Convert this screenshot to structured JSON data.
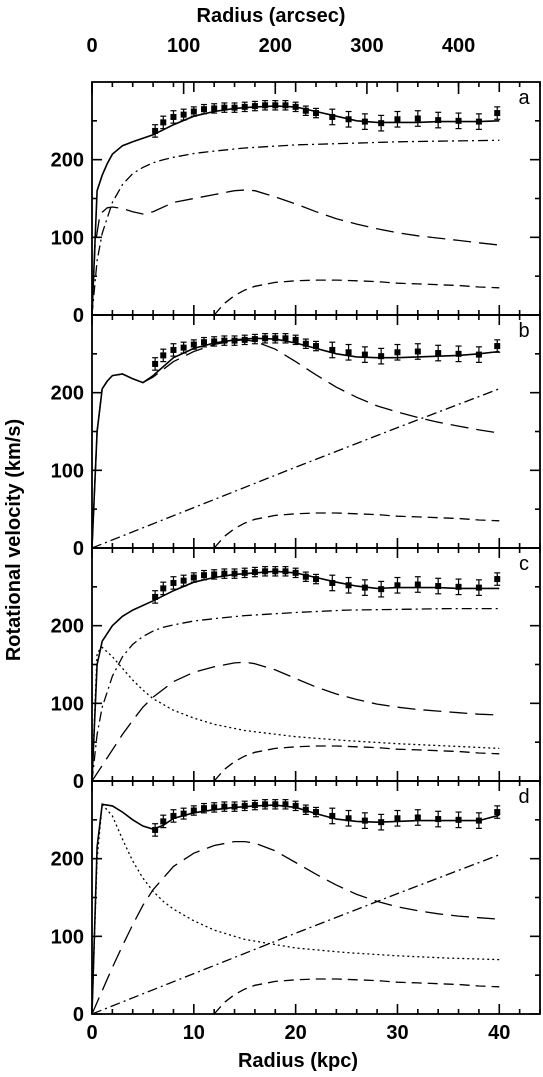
{
  "chart_data": {
    "type": "line",
    "xlabel_bottom": "Radius (kpc)",
    "xlabel_top": "Radius (arcsec)",
    "ylabel": "Rotational velocity (km/s)",
    "xlim": [
      0,
      44
    ],
    "ylim": [
      0,
      300
    ],
    "xticks": [
      0,
      10,
      20,
      30,
      40
    ],
    "top_ticks": [
      0,
      100,
      200,
      300,
      400
    ],
    "top_tick_kpc": [
      0,
      9.0,
      18.0,
      27.0,
      36.0
    ],
    "yticks": [
      0,
      100,
      200
    ],
    "observed": {
      "x": [
        6.2,
        7.0,
        8.0,
        9.0,
        10.0,
        11.0,
        12.0,
        13.0,
        14.0,
        15.0,
        16.0,
        17.0,
        18.0,
        19.0,
        20.0,
        21.0,
        22.0,
        23.6,
        25.2,
        26.8,
        28.4,
        30.0,
        32.0,
        34.0,
        36.0,
        38.0,
        39.8
      ],
      "y": [
        237,
        248,
        255,
        258,
        262,
        265,
        266,
        267,
        267,
        268,
        269,
        270,
        270,
        270,
        268,
        263,
        260,
        255,
        252,
        249,
        247,
        252,
        253,
        251,
        250,
        249,
        260
      ],
      "err": [
        8,
        8,
        8,
        7,
        6,
        6,
        6,
        6,
        6,
        6,
        6,
        6,
        6,
        6,
        6,
        6,
        6,
        10,
        10,
        10,
        10,
        10,
        10,
        10,
        10,
        10,
        8
      ]
    },
    "panels": [
      {
        "label": "a",
        "series": [
          {
            "style": "solid",
            "x": [
              0,
              0.5,
              1,
              1.5,
              2,
              3,
              4,
              6,
              8,
              10,
              12,
              14,
              16,
              18,
              20,
              22,
              24,
              26,
              28,
              30,
              32,
              34,
              36,
              38,
              40
            ],
            "y": [
              0,
              160,
              180,
              195,
              207,
              218,
              223,
              232,
              245,
              256,
              262,
              266,
              268,
              269,
              268,
              262,
              256,
              250,
              248,
              248,
              248,
              249,
              249,
              249,
              250
            ]
          },
          {
            "style": "dashdot",
            "x": [
              0,
              0.5,
              1,
              2,
              3,
              4,
              5,
              6,
              7,
              8,
              10,
              12,
              15,
              20,
              25,
              30,
              35,
              40
            ],
            "y": [
              0,
              70,
              105,
              145,
              168,
              182,
              190,
              196,
              200,
              203,
              208,
              211,
              215,
              219,
              221,
              223,
              224,
              225
            ]
          },
          {
            "style": "longdash",
            "x": [
              0,
              0.3,
              0.8,
              1.5,
              2,
              3,
              4,
              5,
              6,
              8,
              10,
              12,
              14,
              15,
              16,
              18,
              20,
              22,
              24,
              26,
              28,
              30,
              32,
              34,
              36,
              38,
              40
            ],
            "y": [
              0,
              90,
              130,
              138,
              139,
              137,
              133,
              130,
              133,
              145,
              150,
              155,
              160,
              161,
              160,
              152,
              143,
              133,
              124,
              117,
              111,
              106,
              102,
              99,
              96,
              93,
              90
            ]
          },
          {
            "style": "dash",
            "x": [
              12,
              13,
              14,
              15,
              16,
              18,
              20,
              22,
              24,
              26,
              28,
              30,
              32,
              34,
              36,
              38,
              40
            ],
            "y": [
              0,
              15,
              25,
              32,
              37,
              42,
              44,
              45,
              45,
              44,
              43,
              41,
              40,
              39,
              38,
              36,
              35
            ]
          }
        ]
      },
      {
        "label": "b",
        "series": [
          {
            "style": "solid",
            "x": [
              0,
              0.5,
              1,
              1.5,
              2,
              3,
              4,
              5,
              6,
              8,
              10,
              12,
              14,
              16,
              18,
              20,
              22,
              24,
              26,
              28,
              30,
              32,
              34,
              36,
              38,
              40
            ],
            "y": [
              0,
              150,
              205,
              215,
              222,
              224,
              218,
              213,
              222,
              245,
              257,
              264,
              268,
              270,
              269,
              264,
              257,
              250,
              246,
              245,
              245,
              246,
              247,
              248,
              250,
              253
            ]
          },
          {
            "style": "longdash",
            "x": [
              0,
              0.5,
              1,
              1.5,
              2,
              3,
              4,
              5,
              6,
              8,
              10,
              12,
              14,
              15,
              16,
              18,
              20,
              22,
              24,
              26,
              28,
              30,
              32,
              34,
              36,
              38,
              40
            ],
            "y": [
              0,
              150,
              205,
              215,
              222,
              224,
              218,
              213,
              220,
              240,
              253,
              262,
              267,
              268,
              266,
              256,
              240,
              223,
              207,
              194,
              183,
              175,
              168,
              162,
              157,
              152,
              148
            ]
          },
          {
            "style": "dashdot",
            "x": [
              0,
              10,
              20,
              30,
              40
            ],
            "y": [
              0,
              52,
              104,
              155,
              205
            ]
          },
          {
            "style": "dash",
            "x": [
              12,
              13,
              14,
              15,
              16,
              18,
              20,
              22,
              24,
              26,
              28,
              30,
              32,
              34,
              36,
              38,
              40
            ],
            "y": [
              0,
              15,
              25,
              32,
              37,
              42,
              44,
              45,
              45,
              44,
              43,
              41,
              40,
              39,
              38,
              36,
              35
            ]
          }
        ]
      },
      {
        "label": "c",
        "series": [
          {
            "style": "solid",
            "x": [
              0,
              0.5,
              1,
              2,
              3,
              4,
              6,
              8,
              10,
              12,
              14,
              16,
              18,
              20,
              22,
              24,
              26,
              28,
              30,
              32,
              34,
              36,
              38,
              40
            ],
            "y": [
              0,
              150,
              180,
              200,
              212,
              220,
              232,
              245,
              256,
              262,
              266,
              268,
              270,
              268,
              262,
              256,
              251,
              248,
              249,
              249,
              249,
              248,
              248,
              248
            ]
          },
          {
            "style": "dashdot",
            "x": [
              0,
              0.5,
              1,
              2,
              3,
              4,
              5,
              6,
              7,
              8,
              10,
              12,
              15,
              20,
              25,
              30,
              35,
              40
            ],
            "y": [
              0,
              60,
              95,
              135,
              160,
              176,
              186,
              193,
              198,
              201,
              206,
              209,
              213,
              217,
              220,
              221,
              222,
              222
            ]
          },
          {
            "style": "longdash",
            "x": [
              0,
              1,
              2,
              3,
              4,
              5,
              6,
              8,
              10,
              12,
              14,
              15,
              16,
              18,
              20,
              22,
              24,
              26,
              28,
              30,
              32,
              34,
              36,
              38,
              40
            ],
            "y": [
              0,
              20,
              40,
              60,
              78,
              95,
              108,
              128,
              140,
              147,
              152,
              153,
              151,
              143,
              132,
              121,
              112,
              105,
              99,
              95,
              92,
              90,
              88,
              86,
              85
            ]
          },
          {
            "style": "dotted",
            "x": [
              0,
              0.5,
              1,
              2,
              3,
              4,
              5,
              6,
              8,
              10,
              12,
              15,
              20,
              25,
              30,
              35,
              40
            ],
            "y": [
              0,
              165,
              172,
              160,
              145,
              130,
              117,
              106,
              91,
              81,
              73,
              65,
              57,
              52,
              48,
              45,
              42
            ]
          },
          {
            "style": "dash",
            "x": [
              12,
              13,
              14,
              15,
              16,
              18,
              20,
              22,
              24,
              26,
              28,
              30,
              32,
              34,
              36,
              38,
              40
            ],
            "y": [
              0,
              15,
              25,
              32,
              37,
              42,
              44,
              45,
              45,
              44,
              43,
              41,
              40,
              39,
              38,
              36,
              35
            ]
          }
        ]
      },
      {
        "label": "d",
        "series": [
          {
            "style": "solid",
            "x": [
              0,
              0.5,
              1,
              2,
              3,
              4,
              5,
              6,
              7,
              8,
              10,
              12,
              14,
              16,
              18,
              20,
              22,
              24,
              26,
              28,
              30,
              32,
              34,
              36,
              38,
              40
            ],
            "y": [
              0,
              215,
              270,
              268,
              260,
              250,
              242,
              238,
              243,
              252,
              259,
              263,
              266,
              268,
              269,
              266,
              258,
              251,
              248,
              247,
              248,
              249,
              249,
              249,
              249,
              256
            ]
          },
          {
            "style": "dotted",
            "x": [
              0,
              0.5,
              1,
              2,
              3,
              4,
              5,
              6,
              7,
              8,
              10,
              12,
              15,
              20,
              25,
              30,
              35,
              40
            ],
            "y": [
              0,
              200,
              270,
              255,
              225,
              197,
              175,
              158,
              145,
              135,
              120,
              108,
              96,
              85,
              79,
              75,
              72,
              70
            ]
          },
          {
            "style": "longdash",
            "x": [
              0,
              1,
              2,
              3,
              4,
              5,
              6,
              8,
              10,
              12,
              14,
              15,
              16,
              18,
              20,
              22,
              24,
              26,
              28,
              30,
              32,
              34,
              36,
              38,
              40
            ],
            "y": [
              0,
              30,
              60,
              88,
              115,
              140,
              160,
              190,
              207,
              217,
              222,
              222,
              220,
              210,
              195,
              180,
              166,
              154,
              145,
              138,
              133,
              129,
              126,
              124,
              122
            ]
          },
          {
            "style": "dashdot",
            "x": [
              0,
              10,
              20,
              30,
              40
            ],
            "y": [
              0,
              52,
              104,
              155,
              205
            ]
          },
          {
            "style": "dash",
            "x": [
              12,
              13,
              14,
              15,
              16,
              18,
              20,
              22,
              24,
              26,
              28,
              30,
              32,
              34,
              36,
              38,
              40
            ],
            "y": [
              0,
              15,
              25,
              32,
              37,
              42,
              44,
              45,
              45,
              44,
              43,
              41,
              40,
              39,
              38,
              36,
              35
            ]
          }
        ]
      }
    ]
  }
}
